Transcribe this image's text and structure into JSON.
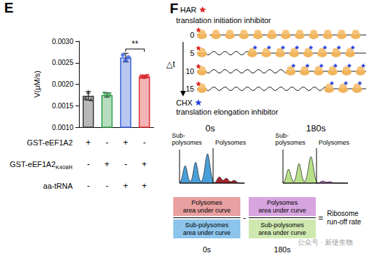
{
  "panel_label": "E",
  "chart_data": {
    "type": "bar",
    "categories": [
      null,
      null,
      null,
      null
    ],
    "values": [
      0.00173,
      0.00175,
      0.00262,
      0.00218
    ],
    "errors": [
      0.0001,
      5e-05,
      0.0001,
      3e-05
    ],
    "points": [
      {
        "marker": "triangle",
        "values": [
          0.00168,
          0.00182,
          0.00165
        ]
      },
      {
        "marker": "triangle-down",
        "values": [
          0.00178,
          0.00172,
          0.00176
        ]
      },
      {
        "marker": "circle",
        "values": [
          0.00268,
          0.00255,
          0.00263
        ]
      },
      {
        "marker": "square",
        "values": [
          0.00218,
          0.00217,
          0.00219
        ]
      }
    ],
    "colors": [
      "#333333",
      "#2e9e4a",
      "#3a5fd9",
      "#e0282d"
    ],
    "y_label": "V(μM/s)",
    "ylim": [
      0.001,
      0.003
    ],
    "yticks": [
      {
        "value": 0.001,
        "label": "0.0010"
      },
      {
        "value": 0.0015,
        "label": "0.0015"
      },
      {
        "value": 0.002,
        "label": "0.0020"
      },
      {
        "value": 0.0025,
        "label": "0.0025"
      },
      {
        "value": 0.003,
        "label": "0.0030"
      }
    ],
    "grid": false,
    "annotations": [
      {
        "text": "**",
        "from": 2,
        "to": 3,
        "y": 0.00282
      }
    ]
  },
  "conditions": [
    {
      "label": "GST-eEF1A2",
      "values": [
        "+",
        "-",
        "+",
        "-"
      ]
    },
    {
      "label": "GST-eEF1A2",
      "subscript": "K408R",
      "values": [
        "-",
        "+",
        "-",
        "+"
      ]
    },
    {
      "label": "aa-tRNA",
      "values": [
        "-",
        "-",
        "+",
        "+"
      ]
    }
  ],
  "diagram": {
    "panel_label": "F",
    "initiation_inhibitor": {
      "name": "HAR",
      "description": "translation initiation inhibitor"
    },
    "elongation_inhibitor": {
      "name": "CHX",
      "description": "translation elongation inhibitor"
    },
    "time_symbol": "△t",
    "rows": [
      "0",
      "5",
      "10",
      "15"
    ],
    "profiles": [
      {
        "time": "0s",
        "left_label": [
          "Sub-",
          "polysomes"
        ],
        "right_label": "Polysomes"
      },
      {
        "time": "180s",
        "left_label": [
          "Sub-",
          "polysomes"
        ],
        "right_label": "Polysomes"
      }
    ],
    "equation": {
      "terms": [
        {
          "top": [
            "Polysomes",
            "area under curve"
          ],
          "bottom": [
            "Sub-polysomes",
            "area under curve"
          ],
          "time": "0s"
        },
        {
          "top": [
            "Polysomes",
            "area under curve"
          ],
          "bottom": [
            "Sub-polysomes",
            "area under curve"
          ],
          "time": "180s"
        }
      ],
      "operator": "-",
      "equals": "=",
      "result": [
        "Ribosome",
        "run-off rate"
      ]
    },
    "watermark": "公众号 · 新使生物"
  }
}
